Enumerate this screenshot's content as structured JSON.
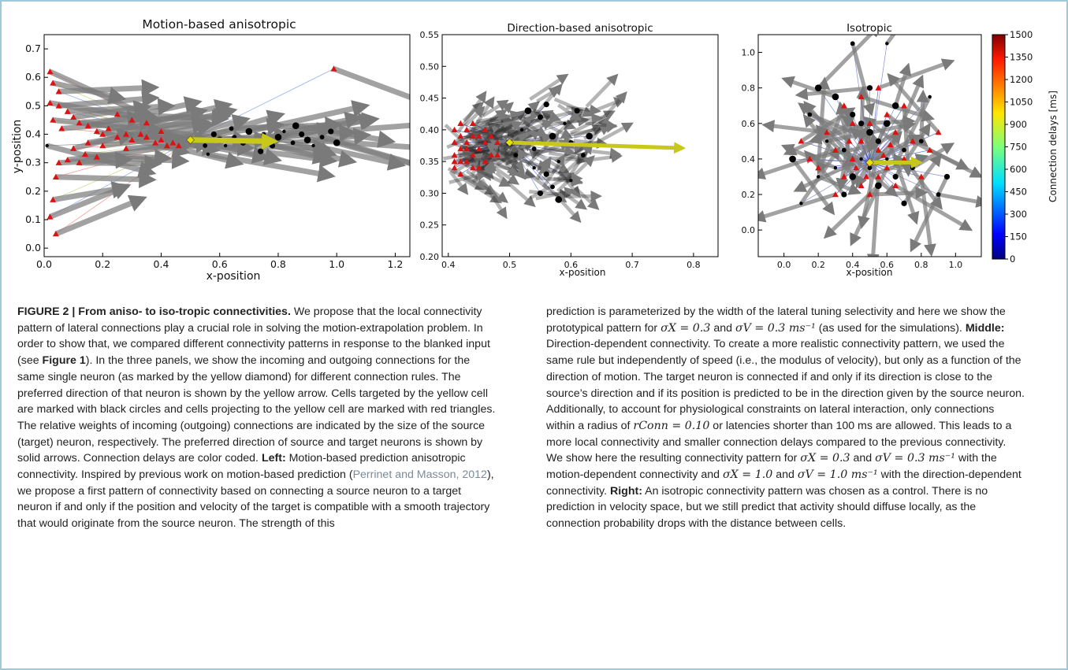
{
  "panels": {
    "left": {
      "title": "Motion-based anisotropic",
      "xlabel": "x-position",
      "ylabel": "y-position",
      "xticks": [
        "0.0",
        "0.2",
        "0.4",
        "0.6",
        "0.8",
        "1.0",
        "1.2"
      ],
      "yticks": [
        "0.0",
        "0.1",
        "0.2",
        "0.3",
        "0.4",
        "0.5",
        "0.6",
        "0.7"
      ]
    },
    "middle": {
      "title": "Direction-based anisotropic",
      "xlabel": "x-position",
      "xticks": [
        "0.4",
        "0.5",
        "0.6",
        "0.7",
        "0.8"
      ],
      "yticks": [
        "0.20",
        "0.25",
        "0.30",
        "0.35",
        "0.40",
        "0.45",
        "0.50",
        "0.55"
      ]
    },
    "right": {
      "title": "Isotropic",
      "xlabel": "x-position",
      "xticks": [
        "0.0",
        "0.2",
        "0.4",
        "0.6",
        "0.8",
        "1.0"
      ],
      "yticks": [
        "0.0",
        "0.2",
        "0.4",
        "0.6",
        "0.8",
        "1.0"
      ]
    },
    "colorbar": {
      "label": "Connection delays [ms]",
      "ticks": [
        "0",
        "150",
        "300",
        "450",
        "600",
        "750",
        "900",
        "1050",
        "1200",
        "1350",
        "1500"
      ]
    }
  },
  "chart_data": [
    {
      "type": "scatter",
      "title": "Motion-based anisotropic",
      "xlabel": "x-position",
      "ylabel": "y-position",
      "xlim": [
        0.0,
        1.25
      ],
      "ylim": [
        -0.03,
        0.75
      ],
      "series": [
        {
          "name": "",
          "marker": "red triangle",
          "points": [
            [
              0.02,
              0.62
            ],
            [
              0.03,
              0.58
            ],
            [
              0.05,
              0.55
            ],
            [
              0.02,
              0.51
            ],
            [
              0.05,
              0.5
            ],
            [
              0.08,
              0.48
            ],
            [
              0.1,
              0.46
            ],
            [
              0.03,
              0.45
            ],
            [
              0.12,
              0.44
            ],
            [
              0.06,
              0.42
            ],
            [
              0.15,
              0.43
            ],
            [
              0.18,
              0.41
            ],
            [
              0.2,
              0.4
            ],
            [
              0.22,
              0.42
            ],
            [
              0.25,
              0.39
            ],
            [
              0.28,
              0.4
            ],
            [
              0.3,
              0.38
            ],
            [
              0.33,
              0.4
            ],
            [
              0.35,
              0.39
            ],
            [
              0.38,
              0.37
            ],
            [
              0.4,
              0.38
            ],
            [
              0.42,
              0.36
            ],
            [
              0.44,
              0.37
            ],
            [
              0.46,
              0.36
            ],
            [
              0.1,
              0.35
            ],
            [
              0.14,
              0.33
            ],
            [
              0.08,
              0.31
            ],
            [
              0.05,
              0.3
            ],
            [
              0.12,
              0.3
            ],
            [
              0.18,
              0.32
            ],
            [
              0.04,
              0.25
            ],
            [
              0.03,
              0.17
            ],
            [
              0.02,
              0.11
            ],
            [
              0.04,
              0.05
            ],
            [
              0.3,
              0.45
            ],
            [
              0.25,
              0.47
            ],
            [
              0.35,
              0.44
            ],
            [
              0.2,
              0.36
            ],
            [
              0.28,
              0.35
            ],
            [
              0.4,
              0.41
            ],
            [
              0.15,
              0.37
            ],
            [
              0.99,
              0.63
            ]
          ]
        },
        {
          "name": "",
          "marker": "black circle",
          "points": [
            [
              0.52,
              0.38
            ],
            [
              0.55,
              0.36
            ],
            [
              0.58,
              0.4
            ],
            [
              0.6,
              0.38
            ],
            [
              0.62,
              0.36
            ],
            [
              0.65,
              0.39
            ],
            [
              0.68,
              0.37
            ],
            [
              0.7,
              0.41
            ],
            [
              0.72,
              0.38
            ],
            [
              0.75,
              0.4
            ],
            [
              0.78,
              0.36
            ],
            [
              0.8,
              0.39
            ],
            [
              0.82,
              0.41
            ],
            [
              0.85,
              0.37
            ],
            [
              0.88,
              0.4
            ],
            [
              0.9,
              0.38
            ],
            [
              0.92,
              0.36
            ],
            [
              0.95,
              0.39
            ],
            [
              0.98,
              0.41
            ],
            [
              1.0,
              0.37
            ],
            [
              0.56,
              0.33
            ],
            [
              0.64,
              0.42
            ],
            [
              0.74,
              0.34
            ],
            [
              0.86,
              0.43
            ],
            [
              0.01,
              0.36
            ]
          ]
        }
      ],
      "cell_position": [
        0.5,
        0.38
      ],
      "preferred_direction": [
        0.3,
        -0.005
      ]
    },
    {
      "type": "scatter",
      "title": "Direction-based anisotropic",
      "xlabel": "x-position",
      "ylabel": "",
      "xlim": [
        0.39,
        0.84
      ],
      "ylim": [
        0.2,
        0.55
      ],
      "series": [
        {
          "name": "",
          "marker": "red triangle",
          "points": [
            [
              0.41,
              0.4
            ],
            [
              0.42,
              0.39
            ],
            [
              0.41,
              0.38
            ],
            [
              0.43,
              0.38
            ],
            [
              0.42,
              0.37
            ],
            [
              0.41,
              0.36
            ],
            [
              0.42,
              0.35
            ],
            [
              0.44,
              0.36
            ],
            [
              0.43,
              0.35
            ],
            [
              0.45,
              0.37
            ],
            [
              0.44,
              0.39
            ],
            [
              0.46,
              0.38
            ],
            [
              0.45,
              0.34
            ],
            [
              0.44,
              0.41
            ],
            [
              0.43,
              0.4
            ],
            [
              0.46,
              0.4
            ],
            [
              0.47,
              0.36
            ],
            [
              0.41,
              0.35
            ],
            [
              0.42,
              0.41
            ],
            [
              0.48,
              0.38
            ],
            [
              0.46,
              0.35
            ],
            [
              0.43,
              0.37
            ],
            [
              0.45,
              0.39
            ],
            [
              0.47,
              0.39
            ],
            [
              0.44,
              0.34
            ],
            [
              0.42,
              0.33
            ],
            [
              0.41,
              0.34
            ],
            [
              0.48,
              0.36
            ]
          ]
        },
        {
          "name": "",
          "marker": "black circle",
          "points": [
            [
              0.52,
              0.4
            ],
            [
              0.54,
              0.37
            ],
            [
              0.55,
              0.42
            ],
            [
              0.57,
              0.39
            ],
            [
              0.58,
              0.35
            ],
            [
              0.6,
              0.38
            ],
            [
              0.56,
              0.33
            ],
            [
              0.53,
              0.43
            ],
            [
              0.59,
              0.41
            ],
            [
              0.62,
              0.36
            ],
            [
              0.55,
              0.3
            ],
            [
              0.58,
              0.29
            ],
            [
              0.6,
              0.32
            ],
            [
              0.51,
              0.36
            ],
            [
              0.56,
              0.44
            ],
            [
              0.63,
              0.39
            ],
            [
              0.54,
              0.34
            ],
            [
              0.57,
              0.31
            ],
            [
              0.61,
              0.43
            ],
            [
              0.5,
              0.38
            ]
          ]
        }
      ],
      "cell_position": [
        0.5,
        0.38
      ],
      "preferred_direction": [
        0.32,
        -0.01
      ]
    },
    {
      "type": "scatter",
      "title": "Isotropic",
      "xlabel": "x-position",
      "ylabel": "",
      "xlim": [
        -0.15,
        1.15
      ],
      "ylim": [
        -0.15,
        1.1
      ],
      "series": [
        {
          "name": "",
          "marker": "red triangle",
          "points": [
            [
              0.4,
              0.4
            ],
            [
              0.45,
              0.5
            ],
            [
              0.55,
              0.45
            ],
            [
              0.6,
              0.35
            ],
            [
              0.35,
              0.3
            ],
            [
              0.5,
              0.6
            ],
            [
              0.65,
              0.55
            ],
            [
              0.3,
              0.45
            ],
            [
              0.7,
              0.4
            ],
            [
              0.45,
              0.25
            ],
            [
              0.55,
              0.3
            ],
            [
              0.2,
              0.35
            ],
            [
              0.75,
              0.5
            ],
            [
              0.4,
              0.6
            ],
            [
              0.6,
              0.65
            ],
            [
              0.25,
              0.55
            ],
            [
              0.8,
              0.3
            ],
            [
              0.35,
              0.7
            ],
            [
              0.5,
              0.2
            ],
            [
              0.7,
              0.7
            ],
            [
              0.15,
              0.4
            ],
            [
              0.85,
              0.45
            ],
            [
              0.45,
              0.75
            ],
            [
              0.3,
              0.2
            ],
            [
              0.65,
              0.25
            ],
            [
              0.55,
              0.8
            ],
            [
              0.9,
              0.55
            ],
            [
              0.1,
              0.5
            ],
            [
              0.5,
              0.38
            ],
            [
              0.42,
              0.35
            ],
            [
              0.58,
              0.42
            ],
            [
              0.38,
              0.5
            ],
            [
              0.62,
              0.48
            ],
            [
              0.48,
              0.3
            ]
          ]
        },
        {
          "name": "",
          "marker": "black circle",
          "points": [
            [
              0.45,
              0.4
            ],
            [
              0.5,
              0.35
            ],
            [
              0.55,
              0.5
            ],
            [
              0.4,
              0.3
            ],
            [
              0.6,
              0.4
            ],
            [
              0.35,
              0.45
            ],
            [
              0.65,
              0.3
            ],
            [
              0.5,
              0.55
            ],
            [
              0.3,
              0.35
            ],
            [
              0.7,
              0.45
            ],
            [
              0.45,
              0.6
            ],
            [
              0.55,
              0.25
            ],
            [
              0.25,
              0.5
            ],
            [
              0.75,
              0.35
            ],
            [
              0.4,
              0.65
            ],
            [
              0.6,
              0.6
            ],
            [
              0.2,
              0.3
            ],
            [
              0.8,
              0.5
            ],
            [
              0.35,
              0.2
            ],
            [
              0.65,
              0.7
            ],
            [
              0.1,
              0.15
            ],
            [
              0.9,
              0.2
            ],
            [
              0.5,
              0.8
            ],
            [
              0.2,
              0.8
            ],
            [
              0.85,
              0.75
            ],
            [
              0.15,
              0.65
            ],
            [
              0.7,
              0.15
            ],
            [
              0.3,
              0.75
            ],
            [
              0.6,
              1.05
            ],
            [
              0.4,
              1.05
            ],
            [
              0.95,
              0.3
            ],
            [
              0.05,
              0.4
            ]
          ]
        }
      ],
      "cell_position": [
        0.5,
        0.38
      ],
      "preferred_direction": [
        0.3,
        0.0
      ]
    }
  ],
  "caption": {
    "fig_label": "FIGURE 2 | From aniso- to iso-tropic connectivities.",
    "p1": " We propose that the local connectivity pattern of lateral connections play a crucial role in solving the motion-extrapolation problem. In order to show that, we compared different connectivity patterns in response to the blanked input (see ",
    "fig1_ref": "Figure 1",
    "p2": "). In the three panels, we show the incoming and outgoing connections for the same single neuron (as marked by the yellow diamond) for different connection rules. The preferred direction of that neuron is shown by the yellow arrow. Cells targeted by the yellow cell are marked with black circles and cells projecting to the yellow cell are marked with red triangles. The relative weights of incoming (outgoing) connections are indicated by the size of the source (target) neuron, respectively. The preferred direction of source and target neurons is shown by solid arrows. Connection delays are color coded. ",
    "left_label": "Left:",
    "p3": " Motion-based prediction anisotropic connectivity. Inspired by previous work on motion-based prediction (",
    "citation": "Perrinet and Masson, 2012",
    "p4": "), we propose a first pattern of connectivity based on connecting a source neuron to a target neuron if and only if the position and velocity of the target is compatible with a smooth trajectory that would originate from the source neuron. The strength of this prediction is parameterized by the width of the lateral tuning selectivity and here we show the prototypical pattern for ",
    "m1": "σX = 0.3",
    "p5": " and ",
    "m2": "σV = 0.3 ms⁻¹",
    "p6": " (as used for the simulations). ",
    "middle_label": "Middle:",
    "p7": " Direction-dependent connectivity. To create a more realistic connectivity pattern, we used the same rule but independently of speed (i.e., the modulus of velocity), but only as a function of the direction of motion. The target neuron is connected if and only if its direction is close to the source’s direction and if its position is predicted to be in the direction given by the source neuron. Additionally, to account for physiological constraints on lateral interaction, only connections within a radius of ",
    "m3": "rConn = 0.10",
    "p8": " or latencies shorter than 100 ms are allowed. This leads to a more local connectivity and smaller connection delays compared to the previous connectivity. We show here the resulting connectivity pattern for ",
    "m4": "σX = 0.3",
    "p9": " and ",
    "m5": "σV = 0.3 ms⁻¹",
    "p10": " with the motion-dependent connectivity and ",
    "m6": "σX = 1.0",
    "p11": " and ",
    "m7": "σV = 1.0 ms⁻¹",
    "p12": " with the direction-dependent connectivity. ",
    "right_label": "Right:",
    "p13": " An isotropic connectivity pattern was chosen as a control. There is no prediction in velocity space, but we still predict that activity should diffuse locally, as the connection probability drops with the distance between cells."
  }
}
